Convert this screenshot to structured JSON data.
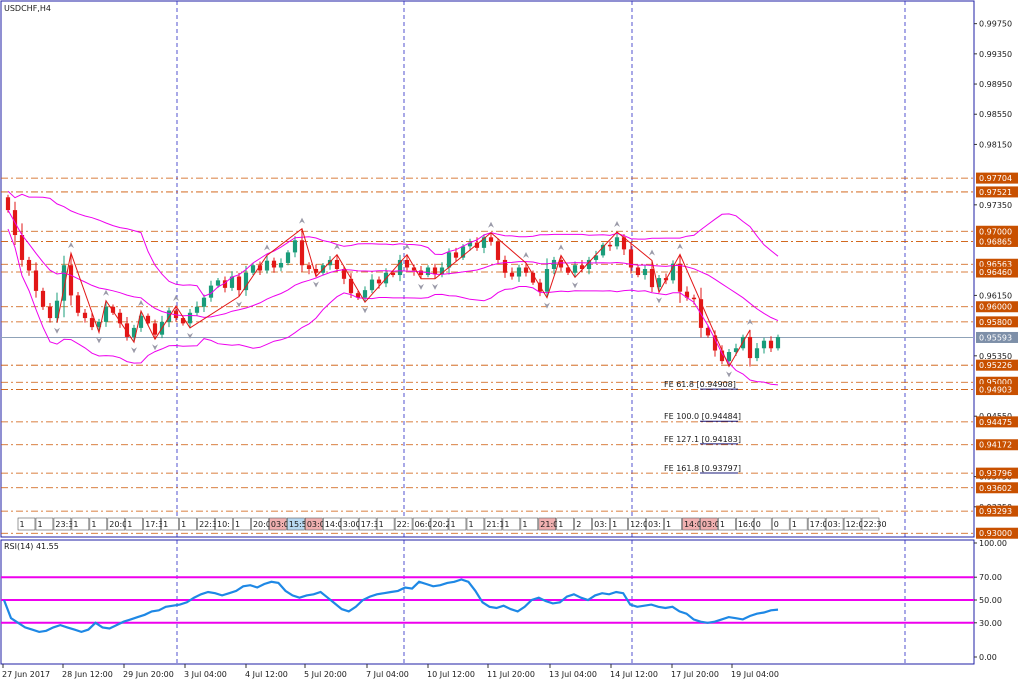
{
  "window": {
    "symbol_label": "USDCHF,H4",
    "rsi_label": "RSI(14) 41.55"
  },
  "colors": {
    "background": "#ffffff",
    "frame": "#1f1fa6",
    "grid_vertical": "#2929c4",
    "bull_candle": "#1a9c7a",
    "bear_candle": "#e21717",
    "bollinger": "#ee00ee",
    "level_line": "#cc5500",
    "level_label_bg": "#c85000",
    "current_price_line": "#8fa2b8",
    "current_price_bg": "#7d8fa8",
    "rsi_line": "#1e88e5",
    "rsi_level": "#ee00ee",
    "zigzag": "#e21717",
    "fractal_arrow": "#9a9aa8",
    "fe_text": "#1a1a7a"
  },
  "price_axis": {
    "labels": [
      "0.99750",
      "0.99350",
      "0.98950",
      "0.98550",
      "0.98150",
      "0.97350",
      "0.96150",
      "0.95350",
      "0.94550",
      "0.93750",
      "0.93350"
    ]
  },
  "levels": [
    {
      "price": 0.97704,
      "label": "0.97704"
    },
    {
      "price": 0.97521,
      "label": "0.97521"
    },
    {
      "price": 0.97,
      "label": "0.97000"
    },
    {
      "price": 0.96865,
      "label": "0.96865"
    },
    {
      "price": 0.96563,
      "label": "0.96563"
    },
    {
      "price": 0.9646,
      "label": "0.96460"
    },
    {
      "price": 0.96,
      "label": "0.96000"
    },
    {
      "price": 0.958,
      "label": "0.95800"
    },
    {
      "price": 0.95226,
      "label": "0.95226"
    },
    {
      "price": 0.95,
      "label": "0.95000"
    },
    {
      "price": 0.94903,
      "label": "0.94903"
    },
    {
      "price": 0.94475,
      "label": "0.94475"
    },
    {
      "price": 0.94172,
      "label": "0.94172"
    },
    {
      "price": 0.93796,
      "label": "0.93796"
    },
    {
      "price": 0.93602,
      "label": "0.93602"
    },
    {
      "price": 0.93293,
      "label": "0.93293"
    },
    {
      "price": 0.93,
      "label": "0.93000"
    }
  ],
  "current_price": {
    "price": 0.95593,
    "label": "0.95593"
  },
  "fibo_expansion": [
    {
      "price": 0.94908,
      "text": "FE 61.8 [0.94908]"
    },
    {
      "price": 0.94484,
      "text": "FE 100.0 [0.94484]"
    },
    {
      "price": 0.94183,
      "text": "FE 127.1 [0.94183]"
    },
    {
      "price": 0.93797,
      "text": "FE 161.8 [0.93797]"
    }
  ],
  "bottom_tag_labels": [
    "1",
    "1",
    "23:30",
    "1",
    "1",
    "20:00",
    "1",
    "17:30",
    "1",
    "1",
    "22:30",
    "10:",
    "1",
    "20:00",
    "03:00",
    "15:55",
    "03:00",
    "14:00",
    "3:00",
    "17:30",
    "1",
    "22:",
    "06:05",
    "20:20",
    "1",
    "1",
    "21:15",
    "1",
    "1",
    "21:00",
    "1",
    "2",
    "03:",
    "1",
    "12:00",
    "03:",
    "1",
    "14:02",
    "03:00",
    "1",
    "16:0",
    "0",
    "0",
    "1",
    "17:0",
    "03:",
    "12:0",
    "22:30"
  ],
  "time_axis": {
    "labels": [
      "27 Jun 2017",
      "28 Jun 12:00",
      "29 Jun 20:00",
      "3 Jul 04:00",
      "4 Jul 12:00",
      "5 Jul 20:00",
      "7 Jul 04:00",
      "10 Jul 12:00",
      "11 Jul 20:00",
      "13 Jul 04:00",
      "14 Jul 12:00",
      "17 Jul 20:00",
      "19 Jul 04:00"
    ]
  },
  "rsi_axis": {
    "labels": [
      "100.00",
      "70.00",
      "50.00",
      "30.00",
      "0.00"
    ]
  },
  "chart_data": {
    "type": "candlestick",
    "symbol": "USDCHF",
    "timeframe": "H4",
    "x_labels": [
      "27 Jun 2017",
      "28 Jun 12:00",
      "29 Jun 20:00",
      "3 Jul 04:00",
      "4 Jul 12:00",
      "5 Jul 20:00",
      "7 Jul 04:00",
      "10 Jul 12:00",
      "11 Jul 20:00",
      "13 Jul 04:00",
      "14 Jul 12:00",
      "17 Jul 20:00",
      "19 Jul 04:00"
    ],
    "y_range": [
      0.9295,
      1.0005
    ],
    "close": [
      0.9728,
      0.9695,
      0.9662,
      0.9648,
      0.9621,
      0.96,
      0.9585,
      0.9608,
      0.9655,
      0.9615,
      0.9592,
      0.9585,
      0.9573,
      0.958,
      0.96,
      0.9592,
      0.9578,
      0.956,
      0.9572,
      0.9588,
      0.9578,
      0.9563,
      0.958,
      0.9595,
      0.9585,
      0.9578,
      0.9592,
      0.96,
      0.9612,
      0.9628,
      0.9635,
      0.9625,
      0.964,
      0.9622,
      0.9645,
      0.9655,
      0.9648,
      0.9661,
      0.9652,
      0.9658,
      0.9672,
      0.9688,
      0.9655,
      0.965,
      0.9645,
      0.9655,
      0.9662,
      0.965,
      0.9637,
      0.9618,
      0.9612,
      0.9622,
      0.9636,
      0.9631,
      0.9645,
      0.9642,
      0.9662,
      0.9652,
      0.9648,
      0.9642,
      0.9652,
      0.9643,
      0.9652,
      0.9672,
      0.9665,
      0.968,
      0.9685,
      0.9678,
      0.9692,
      0.9686,
      0.9662,
      0.9645,
      0.964,
      0.9652,
      0.9645,
      0.9632,
      0.962,
      0.965,
      0.9662,
      0.9652,
      0.9645,
      0.9655,
      0.965,
      0.9662,
      0.9668,
      0.9682,
      0.968,
      0.9692,
      0.9676,
      0.9652,
      0.9642,
      0.965,
      0.9626,
      0.9638,
      0.9635,
      0.9657,
      0.962,
      0.9612,
      0.961,
      0.9572,
      0.9562,
      0.9542,
      0.9528,
      0.954,
      0.9545,
      0.956,
      0.9532,
      0.9545,
      0.9555,
      0.9545,
      0.956
    ],
    "series": [
      {
        "name": "RSI(14)",
        "last": 41.55,
        "levels": [
          70,
          50,
          30
        ],
        "values": [
          50,
          34,
          30,
          26,
          24,
          22,
          23,
          26,
          28,
          26,
          24,
          22,
          24,
          30,
          26,
          25,
          28,
          31,
          33,
          35,
          37,
          40,
          41,
          44,
          45,
          46,
          48,
          52,
          55,
          57,
          56,
          54,
          56,
          58,
          62,
          63,
          61,
          64,
          66,
          65,
          58,
          54,
          52,
          54,
          55,
          57,
          52,
          47,
          42,
          40,
          44,
          50,
          53,
          55,
          56,
          57,
          58,
          61,
          60,
          66,
          64,
          62,
          63,
          65,
          66,
          68,
          66,
          58,
          48,
          44,
          43,
          45,
          42,
          40,
          44,
          50,
          52,
          49,
          47,
          48,
          53,
          55,
          52,
          50,
          54,
          56,
          55,
          57,
          56,
          46,
          44,
          45,
          46,
          44,
          43,
          44,
          40,
          38,
          33,
          31,
          30,
          31,
          33,
          35,
          34,
          33,
          36,
          38,
          39,
          41,
          41.55
        ]
      }
    ]
  }
}
